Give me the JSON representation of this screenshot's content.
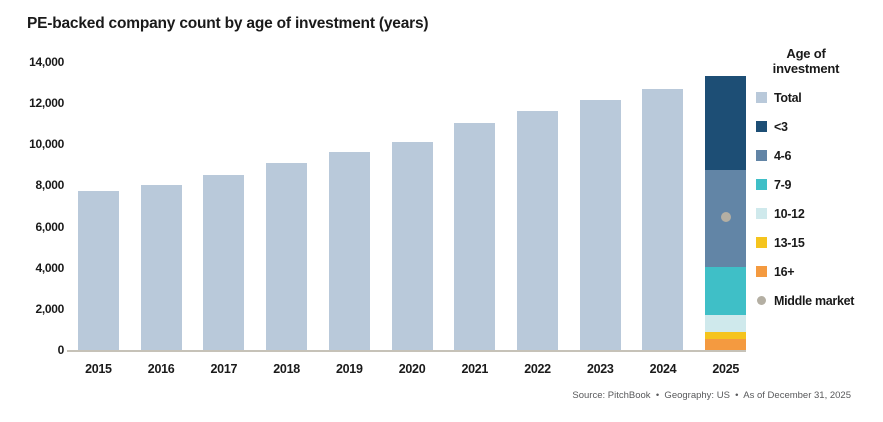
{
  "title": "PE-backed company count by age of investment (years)",
  "source_note": "Source: PitchBook  •  Geography: US  •  As of December 31, 2025",
  "colors": {
    "total": "#b9c9da",
    "under_3": "#1d4e75",
    "age_4_6": "#6285a6",
    "age_7_9": "#3fbfc7",
    "age_10_12": "#cfe9ec",
    "age_13_15": "#f5c41e",
    "age_16_plus": "#f49a40",
    "middle_market": "#b4afa3",
    "axis_line": "#c6c2b8",
    "text": "#1a1a1a"
  },
  "legend": {
    "header_line1": "Age of",
    "header_line2": "investment",
    "items": [
      {
        "key": "total",
        "label": "Total",
        "color": "#b9c9da",
        "shape": "square"
      },
      {
        "key": "under-3",
        "label": "<3",
        "color": "#1d4e75",
        "shape": "square"
      },
      {
        "key": "age-4-6",
        "label": "4-6",
        "color": "#6285a6",
        "shape": "square"
      },
      {
        "key": "age-7-9",
        "label": "7-9",
        "color": "#3fbfc7",
        "shape": "square"
      },
      {
        "key": "age-10-12",
        "label": "10-12",
        "color": "#cfe9ec",
        "shape": "square"
      },
      {
        "key": "age-13-15",
        "label": "13-15",
        "color": "#f5c41e",
        "shape": "square"
      },
      {
        "key": "age-16-plus",
        "label": "16+",
        "color": "#f49a40",
        "shape": "square"
      },
      {
        "key": "middle-market",
        "label": "Middle market",
        "color": "#b4afa3",
        "shape": "circle"
      }
    ]
  },
  "chart_data": {
    "type": "bar",
    "title": "PE-backed company count by age of investment (years)",
    "categories": [
      "2015",
      "2016",
      "2017",
      "2018",
      "2019",
      "2020",
      "2021",
      "2022",
      "2023",
      "2024",
      "2025"
    ],
    "series": [
      {
        "name": "Total",
        "color": "#b9c9da",
        "values": [
          7700,
          8000,
          8500,
          9050,
          9600,
          10100,
          11000,
          11600,
          12100,
          12650,
          13275
        ]
      }
    ],
    "stacked_category": "2025",
    "stacked_segments_top_to_bottom": [
      {
        "key": "under-3",
        "name": "<3",
        "value": 4550,
        "color": "#1d4e75"
      },
      {
        "key": "age-4-6",
        "name": "4-6",
        "value": 4700,
        "color": "#6285a6"
      },
      {
        "key": "age-7-9",
        "name": "7-9",
        "value": 2350,
        "color": "#3fbfc7"
      },
      {
        "key": "age-10-12",
        "name": "10-12",
        "value": 825,
        "color": "#cfe9ec"
      },
      {
        "key": "age-13-15",
        "name": "13-15",
        "value": 300,
        "color": "#f5c41e"
      },
      {
        "key": "age-16-plus",
        "name": "16+",
        "value": 550,
        "color": "#f49a40"
      }
    ],
    "middle_market_marker": {
      "category": "2025",
      "value": 6450,
      "color": "#b4afa3"
    },
    "ylim": [
      0,
      14000
    ],
    "yticks": [
      0,
      2000,
      4000,
      6000,
      8000,
      10000,
      12000,
      14000
    ],
    "ytick_labels": [
      "0",
      "2,000",
      "4,000",
      "6,000",
      "8,000",
      "10,000",
      "12,000",
      "14,000"
    ],
    "grid": false,
    "legend_position": "right",
    "xlabel": "",
    "ylabel": ""
  }
}
